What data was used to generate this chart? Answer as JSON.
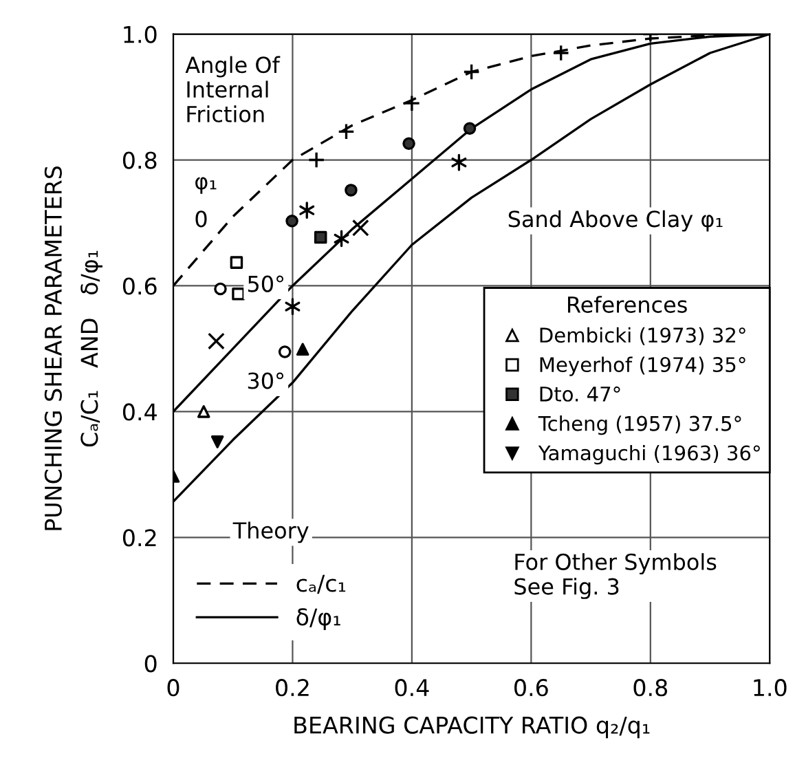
{
  "chart_data": {
    "type": "line",
    "xlabel": "BEARING CAPACITY RATIO q₂/q₁",
    "ylabel": "PUNCHING SHEAR PARAMETERS\nCₐ/C₁   AND   δ/φ₁",
    "xlim": [
      0,
      1.0
    ],
    "ylim": [
      0,
      1.0
    ],
    "xticks": [
      0,
      0.2,
      0.4,
      0.6,
      0.8,
      {
        "value": 1,
        "label": "1.0"
      }
    ],
    "yticks": [
      0,
      0.2,
      0.4,
      0.6,
      0.8,
      {
        "value": 1,
        "label": "1.0"
      }
    ],
    "grid": true,
    "legend": "right",
    "legend_title": "References",
    "series": [
      {
        "name": "cₐ/c₁",
        "line_style": "dashed",
        "color": "#000000",
        "x": [
          0,
          0.1,
          0.2,
          0.3,
          0.4,
          0.5,
          0.6,
          0.7,
          0.8,
          0.9,
          1.0
        ],
        "values": [
          0.6,
          0.71,
          0.8,
          0.855,
          0.895,
          0.94,
          0.965,
          0.982,
          0.993,
          0.998,
          1.0
        ]
      },
      {
        "name": "δ/φ₁",
        "line_style": "solid",
        "color": "#000000",
        "x": [
          0,
          0.1,
          0.2,
          0.3,
          0.4,
          0.5,
          0.6,
          0.7,
          0.8,
          0.9,
          1.0
        ],
        "values": [
          0.4,
          0.5,
          0.6,
          0.69,
          0.77,
          0.85,
          0.912,
          0.96,
          0.985,
          0.996,
          1.0
        ]
      },
      {
        "line_style": "solid",
        "color": "#000000",
        "x": [
          0,
          0.1,
          0.2,
          0.3,
          0.4,
          0.5,
          0.6,
          0.7,
          0.8,
          0.9,
          1.0
        ],
        "values": [
          0.257,
          0.355,
          0.446,
          0.56,
          0.665,
          0.74,
          0.8,
          0.865,
          0.92,
          0.97,
          1.0
        ]
      },
      {
        "name": "Dembicki (1973) 32°",
        "type": "scatter",
        "marker": "triangle",
        "color": "#ffffff",
        "x": [
          0.051
        ],
        "values": [
          0.4
        ]
      },
      {
        "name": "Meyerhof (1974) 35°",
        "type": "scatter",
        "marker": "square",
        "color": "#ffffff",
        "x": [
          0.106,
          0.109
        ],
        "values": [
          0.637,
          0.587
        ]
      },
      {
        "name": "Dto. 47°",
        "type": "scatter",
        "marker": "square",
        "color": "#333333",
        "x": [
          0.247
        ],
        "values": [
          0.677
        ]
      },
      {
        "name": "Tcheng (1957) 37.5°",
        "type": "scatter",
        "marker": "triangle",
        "color": "#000000",
        "x": [
          0.0,
          0.217
        ],
        "values": [
          0.297,
          0.499
        ]
      },
      {
        "name": "Yamaguchi (1963) 36°",
        "type": "scatter",
        "marker": "triangle_down",
        "color": "#000000",
        "x": [
          0.074
        ],
        "values": [
          0.352
        ]
      },
      {
        "type": "scatter",
        "marker": "cross",
        "color": "#000000",
        "x": [
          0.24,
          0.29,
          0.4,
          0.5,
          0.65,
          0.8
        ],
        "values": [
          0.8,
          0.845,
          0.89,
          0.94,
          0.97,
          1.0
        ]
      },
      {
        "type": "scatter",
        "marker": "circle",
        "color": "#333333",
        "x": [
          0.199,
          0.298,
          0.395,
          0.497
        ],
        "values": [
          0.703,
          0.752,
          0.826,
          0.85
        ]
      },
      {
        "type": "scatter",
        "marker": "cross",
        "color": "#000000",
        "x": [
          0.224,
          0.282,
          0.2,
          0.479
        ],
        "values": [
          0.72,
          0.675,
          0.567,
          0.796
        ]
      },
      {
        "type": "scatter",
        "marker": "cross",
        "color": "#000000",
        "x": [
          0.314,
          0.072
        ],
        "values": [
          0.692,
          0.512
        ]
      },
      {
        "type": "scatter",
        "marker": "circle",
        "color": "#ffffff",
        "x": [
          0.079,
          0.187
        ],
        "values": [
          0.595,
          0.495
        ]
      }
    ],
    "annotations": [
      "Angle Of\nInternal\nFriction",
      "φ₁",
      "0",
      {
        "text": "50°",
        "x": 0.2,
        "y": 0.6
      },
      {
        "text": "30°",
        "x": 0.2,
        "y": 0.446
      },
      "Sand Above Clay φ₁",
      "Theory",
      "For Other Symbols\nSee Fig. 3"
    ]
  }
}
